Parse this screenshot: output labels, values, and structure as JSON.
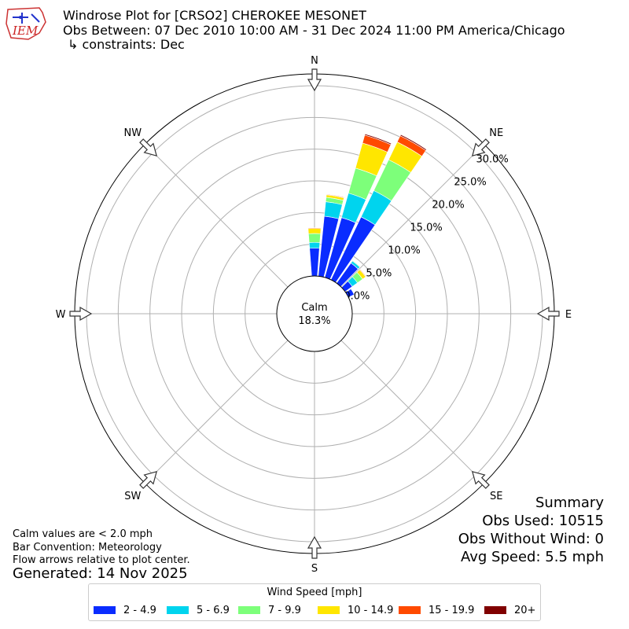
{
  "header": {
    "logo_text": "IEM",
    "title": "Windrose Plot for [CRSO2] CHEROKEE MESONET",
    "period": "Obs Between: 07 Dec 2010 10:00 AM - 31 Dec 2024 11:00 PM America/Chicago",
    "constraints": "↳ constraints: Dec"
  },
  "chart_data": {
    "type": "windrose",
    "direction_labels": [
      "N",
      "NE",
      "E",
      "SE",
      "S",
      "SW",
      "W",
      "NW"
    ],
    "radial_ticks": [
      "0.0%",
      "5.0%",
      "10.0%",
      "15.0%",
      "20.0%",
      "25.0%",
      "30.0%"
    ],
    "radial_max": 30,
    "calm": {
      "label": "Calm",
      "value": "18.3%"
    },
    "bins": [
      {
        "label": "2 - 4.9",
        "color": "#0a2cff"
      },
      {
        "label": "5 - 6.9",
        "color": "#00d4ee"
      },
      {
        "label": "7 - 9.9",
        "color": "#7dff7a"
      },
      {
        "label": "10 - 14.9",
        "color": "#ffe600"
      },
      {
        "label": "15 - 19.9",
        "color": "#ff4a00"
      },
      {
        "label": "20+",
        "color": "#800000"
      }
    ],
    "sectors": [
      {
        "direction": 0,
        "values": [
          4.4,
          0.9,
          1.4,
          0.8,
          0.1,
          0.0
        ]
      },
      {
        "direction": 10,
        "values": [
          9.5,
          2.3,
          0.7,
          0.4,
          0.1,
          0.0
        ]
      },
      {
        "direction": 20,
        "values": [
          9.8,
          4.0,
          4.1,
          4.1,
          1.3,
          0.2
        ]
      },
      {
        "direction": 30,
        "values": [
          11.0,
          4.6,
          5.4,
          3.1,
          1.1,
          0.2
        ]
      },
      {
        "direction": 40,
        "values": [
          3.9,
          0.4,
          0.1,
          0.0,
          0.0,
          0.0
        ]
      },
      {
        "direction": 50,
        "values": [
          1.4,
          1.0,
          1.0,
          0.6,
          0.1,
          0.0
        ]
      },
      {
        "direction": 60,
        "values": [
          1.0,
          0.0,
          0.0,
          0.0,
          0.0,
          0.0
        ]
      }
    ]
  },
  "notes": {
    "calm": "Calm values are < 2.0 mph",
    "bar_convention": "Bar Convention: Meteorology",
    "flow": "Flow arrows relative to plot center.",
    "generated": "Generated: 14 Nov 2025"
  },
  "summary": {
    "title": "Summary",
    "obs_used": "Obs Used: 10515",
    "obs_without_wind": "Obs Without Wind: 0",
    "avg_speed": "Avg Speed: 5.5 mph"
  },
  "legend": {
    "title": "Wind Speed [mph]"
  }
}
